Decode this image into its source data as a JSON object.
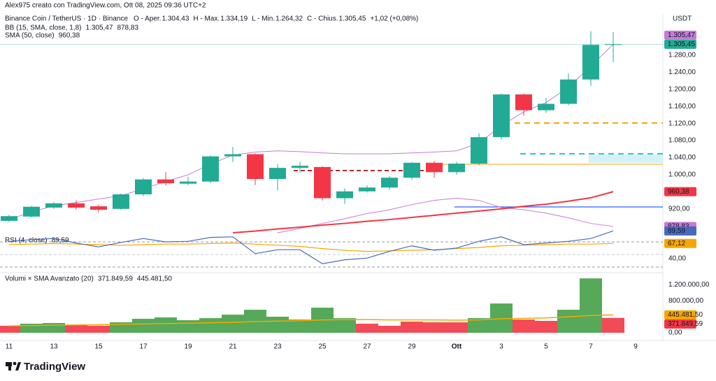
{
  "header": {
    "author": "Alex975 creato con TradingView.com, Ott 08, 2025 09:36 UTC+2",
    "currency": "USDT",
    "symbol": "Binance Coin / TetherUS · 1D · Binance",
    "ohlc": [
      {
        "key": "O - Aper.",
        "value": "1.304,43"
      },
      {
        "key": "H - Max.",
        "value": "1.334,19"
      },
      {
        "key": "L - Min.",
        "value": "1.264,32"
      },
      {
        "key": "C - Chius.",
        "value": "1.305,45"
      }
    ],
    "change": "+1,02 (+0,08%)",
    "logo": "TradingView"
  },
  "chart_data": [
    {
      "type": "candlestick",
      "categories": [
        "11",
        null,
        "13",
        null,
        "15",
        null,
        "17",
        null,
        "19",
        null,
        "21",
        null,
        "23",
        null,
        "25",
        null,
        "27",
        null,
        "29",
        null,
        "Ott",
        null,
        "3",
        null,
        "5",
        null,
        "7",
        null,
        "9"
      ],
      "open": [
        892,
        902,
        923,
        933,
        926,
        920,
        954,
        989,
        979,
        984,
        1043,
        1048,
        990,
        1016,
        1018,
        945,
        961,
        970,
        993,
        1028,
        1006,
        1026,
        1088,
        1188,
        1151,
        1166,
        1223,
        1304.43,
        null
      ],
      "high": [
        906,
        927,
        936,
        940,
        930,
        956,
        992,
        1006,
        995,
        1045,
        1065,
        1050,
        1025,
        1030,
        1020,
        968,
        975,
        997,
        1030,
        1032,
        1030,
        1097,
        1190,
        1190,
        1180,
        1237,
        1336,
        1334.19,
        null
      ],
      "low": [
        889,
        900,
        920,
        918,
        912,
        918,
        950,
        975,
        975,
        980,
        1030,
        976,
        963,
        1005,
        940,
        932,
        958,
        965,
        988,
        993,
        1000,
        1022,
        1082,
        1138,
        1145,
        1163,
        1208,
        1264.32,
        null
      ],
      "close": [
        903,
        925,
        933,
        923,
        918,
        954,
        989,
        980,
        984,
        1043,
        1048,
        990,
        1016,
        1021,
        945,
        961,
        970,
        993,
        1028,
        1006,
        1026,
        1088,
        1188,
        1151,
        1166,
        1223,
        1304,
        1305.45,
        null
      ],
      "up_color": "#22ab94",
      "down_color": "#f23645",
      "ylim": [
        864,
        1360
      ],
      "yticks": [
        {
          "value": 920,
          "label": "920,00"
        },
        {
          "value": 1000,
          "label": "1.000,00"
        },
        {
          "value": 1040,
          "label": "1.040,00"
        },
        {
          "value": 1080,
          "label": "1.080,00"
        },
        {
          "value": 1120,
          "label": "1.120,00"
        },
        {
          "value": 1160,
          "label": "1.160,00"
        },
        {
          "value": 1200,
          "label": "1.200,00"
        },
        {
          "value": 1240,
          "label": "1.240,00"
        },
        {
          "value": 1280,
          "label": "1.280,00"
        }
      ],
      "indicators": [
        {
          "name": "BB (15, SMA, close, 1,8)",
          "color": "#c77ad6",
          "lines": [
            [
              895,
              913,
              927,
              935,
              943,
              951,
              967,
              984,
              1000,
              1025,
              1046,
              1053,
              1056,
              1054,
              1051,
              1049,
              1049,
              1049,
              1051,
              1053,
              1056,
              1074,
              1115,
              1147,
              1169,
              1205,
              1254,
              1305.47,
              null
            ],
            [
              null,
              null,
              null,
              null,
              null,
              null,
              null,
              null,
              null,
              null,
              null,
              null,
              864,
              874,
              886,
              897,
              909,
              918,
              930,
              940,
              945,
              940,
              923,
              918,
              910,
              899,
              886,
              878.83,
              null
            ]
          ],
          "value_labels": [
            "1.305,47",
            "878,83"
          ]
        },
        {
          "name": "SMA (50, close)",
          "color": "#f23645",
          "lines": [
            [
              null,
              null,
              null,
              null,
              null,
              null,
              null,
              null,
              null,
              null,
              864,
              868,
              873,
              877,
              882,
              886,
              891,
              895,
              900,
              905,
              910,
              915,
              920,
              926,
              931,
              938,
              946,
              960.38,
              null
            ]
          ],
          "value_labels": [
            "960,38"
          ]
        }
      ]
    },
    {
      "type": "line",
      "title": "RSI (4, close)",
      "ylim": [
        20,
        100
      ],
      "yticks": [
        {
          "value": 40,
          "label": "40,00"
        }
      ],
      "series": [
        {
          "color": "#4a69bd",
          "values": [
            71,
            74,
            76,
            68,
            61,
            69,
            76,
            70,
            71,
            78,
            79,
            49,
            56,
            56,
            31,
            38,
            41,
            53,
            63,
            55,
            59,
            71,
            79,
            65,
            68,
            71,
            76,
            89.59,
            null
          ],
          "value_label": "89,59"
        },
        {
          "color": "#f7a600",
          "values": [
            65,
            66,
            67,
            66,
            65,
            64,
            65,
            66,
            66,
            67,
            68,
            66,
            64,
            62,
            58,
            55,
            53,
            54,
            55,
            56,
            58,
            60,
            63,
            64,
            65,
            66,
            66,
            67.12,
            null
          ],
          "value_label": "67,12"
        }
      ]
    },
    {
      "type": "bar",
      "title": "Volumi × SMA Avanzato (20)",
      "ylim": [
        0,
        1500000
      ],
      "yticks": [
        {
          "value": 0,
          "label": "0,00"
        },
        {
          "value": 800000,
          "label": "800.000,00"
        },
        {
          "value": 1200000,
          "label": "1.200.000,00"
        }
      ],
      "values": [
        174000,
        226000,
        243000,
        191000,
        174000,
        261000,
        348000,
        383000,
        313000,
        365000,
        452000,
        574000,
        400000,
        330000,
        626000,
        365000,
        226000,
        174000,
        278000,
        261000,
        261000,
        365000,
        730000,
        330000,
        296000,
        574000,
        1357000,
        371849.59,
        null
      ],
      "colors": [
        "#f23645",
        "#43a047",
        "#43a047",
        "#f23645",
        "#f23645",
        "#43a047",
        "#43a047",
        "#43a047",
        "#43a047",
        "#43a047",
        "#43a047",
        "#43a047",
        "#43a047",
        "#43a047",
        "#43a047",
        "#43a047",
        "#f23645",
        "#f23645",
        "#f23645",
        "#f23645",
        "#f23645",
        "#43a047",
        "#43a047",
        "#f23645",
        "#f23645",
        "#43a047",
        "#43a047",
        "#f23645",
        null
      ],
      "value_label": "371.849,59",
      "sma": {
        "color": "#f7a600",
        "values": [
          170000,
          180000,
          190000,
          195000,
          200000,
          210000,
          220000,
          230000,
          240000,
          250000,
          260000,
          280000,
          290000,
          300000,
          320000,
          330000,
          330000,
          320000,
          320000,
          320000,
          315000,
          320000,
          350000,
          360000,
          370000,
          400000,
          430000,
          445481.5,
          null
        ],
        "value_label": "445.481,50"
      }
    }
  ]
}
